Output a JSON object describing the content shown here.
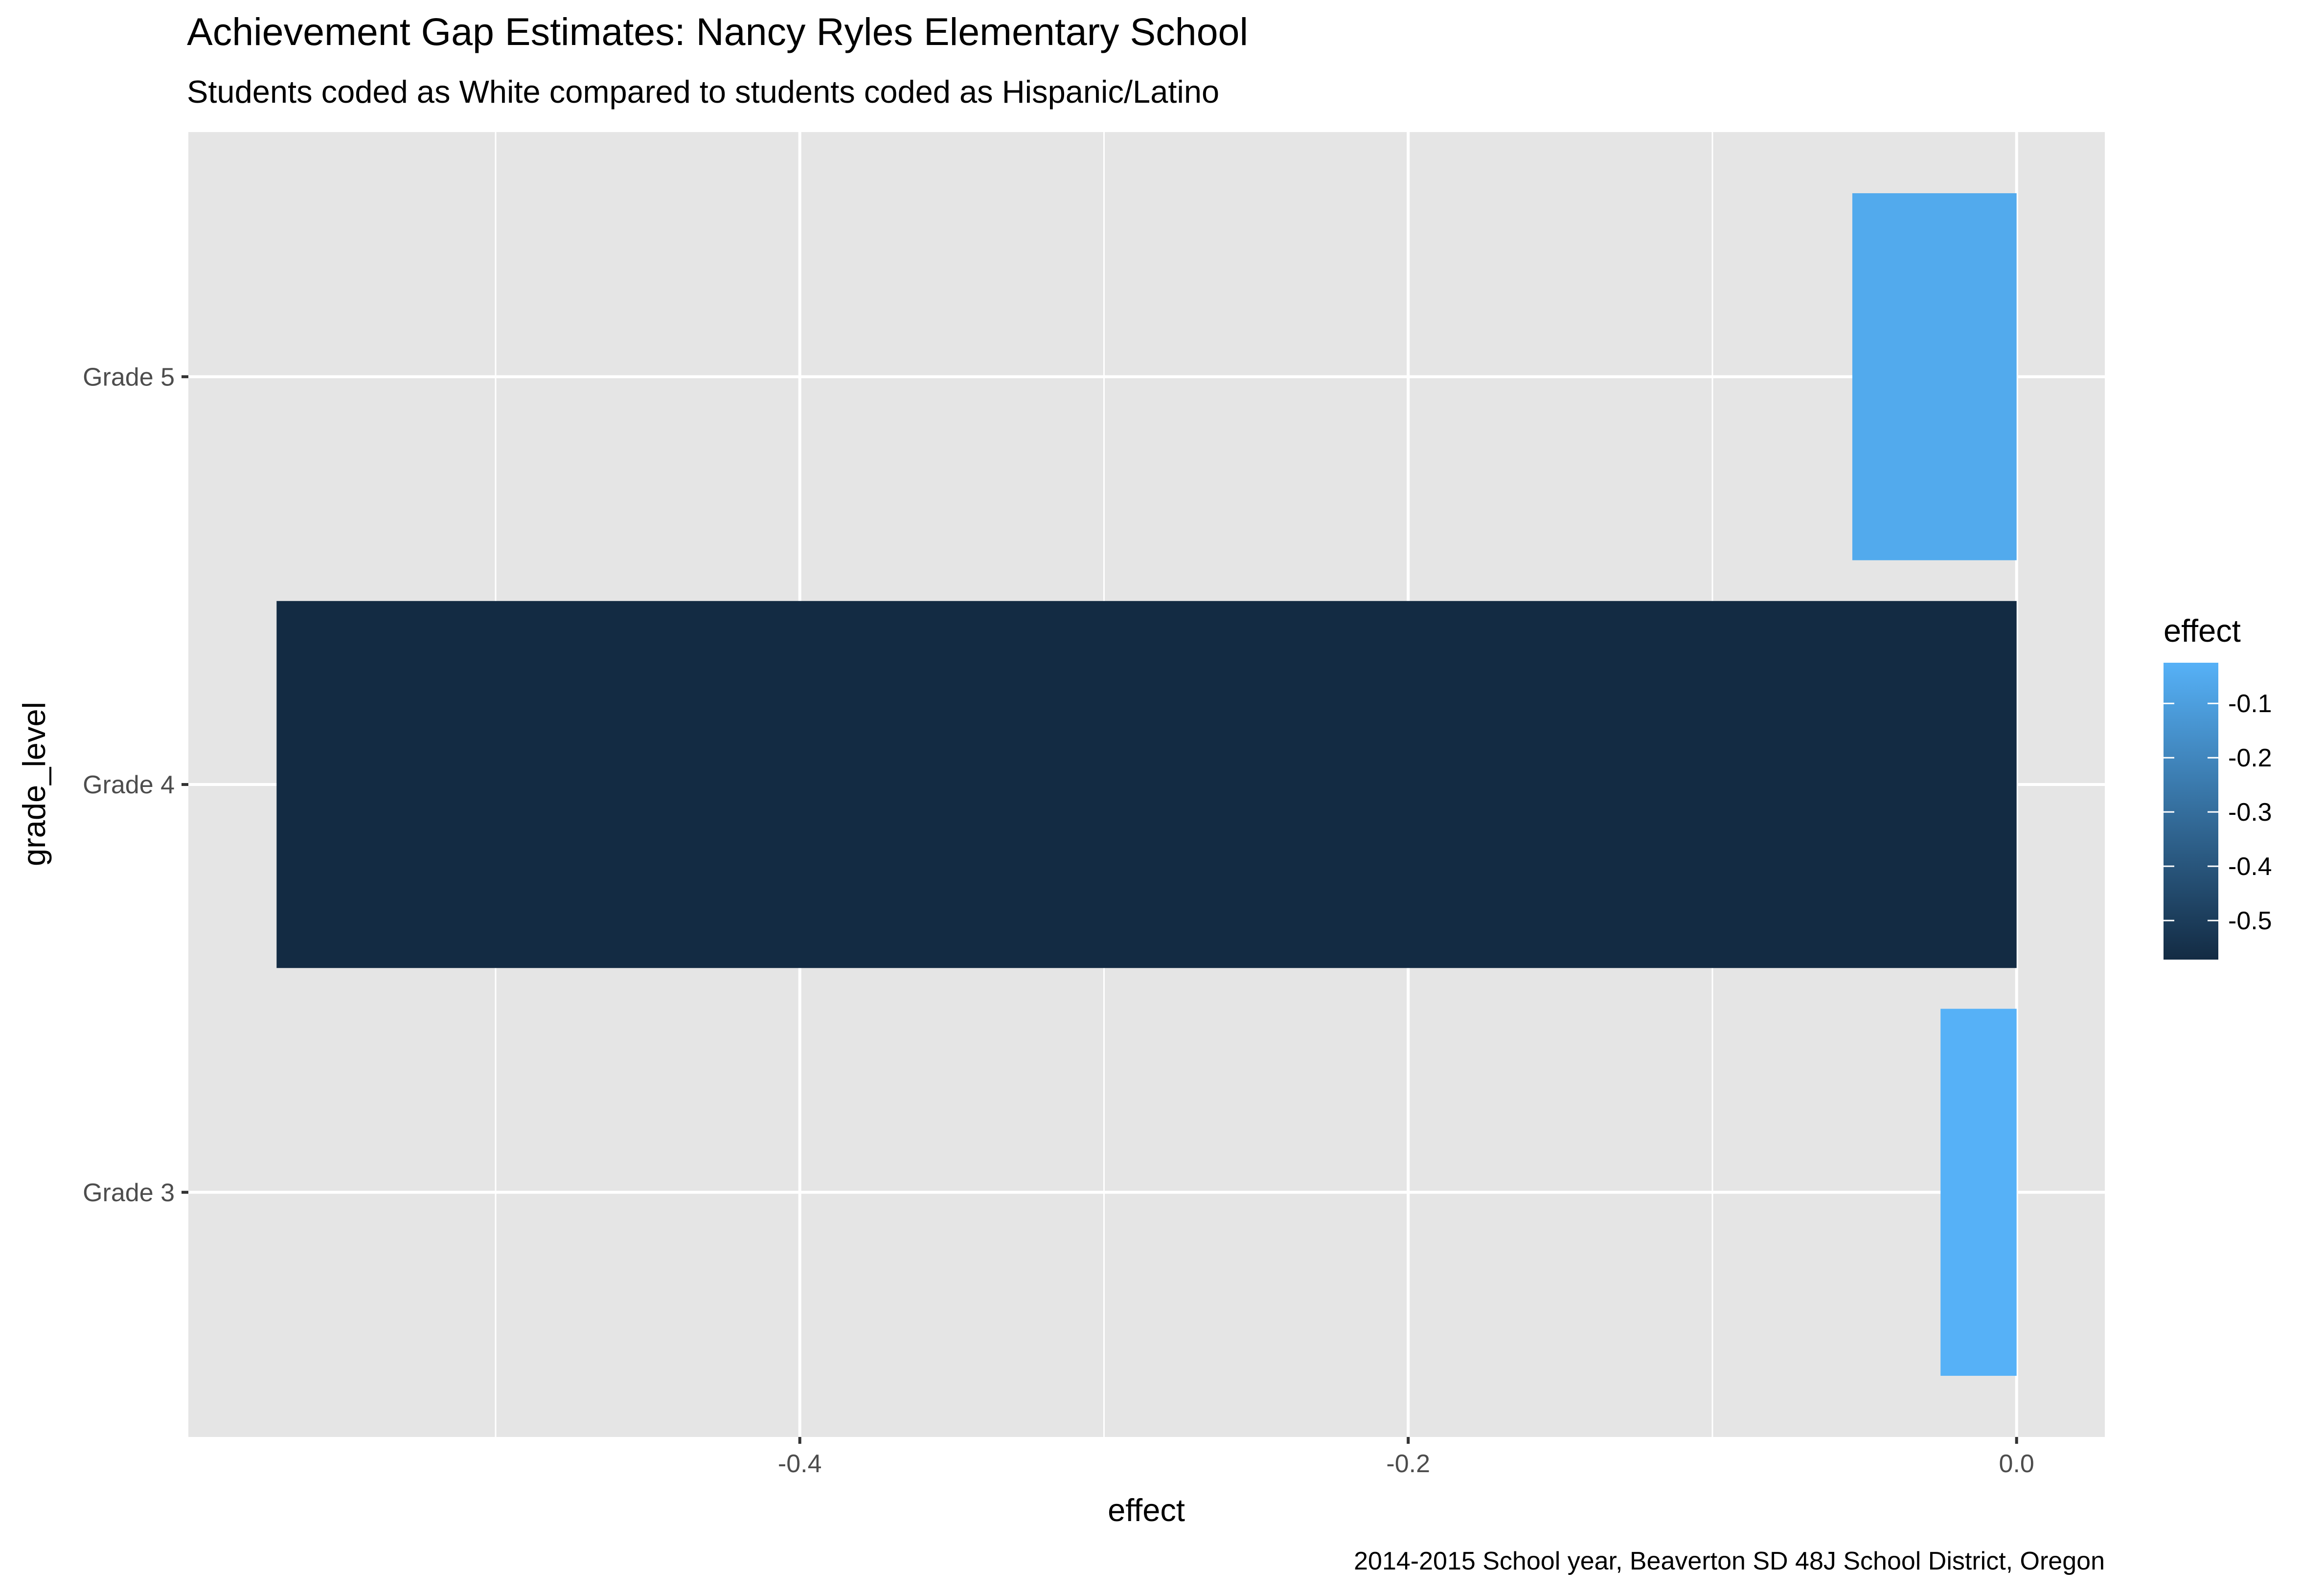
{
  "chart_data": {
    "type": "bar",
    "orientation": "horizontal",
    "title": "Achievement Gap Estimates: Nancy Ryles Elementary School",
    "subtitle": "Students coded as White compared to students coded as Hispanic/Latino",
    "caption": "2014-2015 School year, Beaverton SD 48J School District, Oregon",
    "xlabel": "effect",
    "ylabel": "grade_level",
    "categories": [
      "Grade 3",
      "Grade 4",
      "Grade 5"
    ],
    "values": [
      -0.025,
      -0.572,
      -0.054
    ],
    "xlim": [
      -0.601,
      0.029
    ],
    "x_ticks": [
      -0.4,
      -0.2,
      0.0
    ],
    "x_tick_labels": [
      "-0.4",
      "-0.2",
      "0.0"
    ],
    "grid": true,
    "panel_background": "#e5e5e5",
    "gridline_color": "#ffffff",
    "legend": {
      "title": "effect",
      "position": "right",
      "type": "colorbar",
      "ticks": [
        -0.1,
        -0.2,
        -0.3,
        -0.4,
        -0.5
      ],
      "tick_labels": [
        "-0.1",
        "-0.2",
        "-0.3",
        "-0.4",
        "-0.5"
      ],
      "range": [
        -0.572,
        -0.025
      ],
      "color_low": "#132b43",
      "color_high": "#56b1f7"
    }
  }
}
